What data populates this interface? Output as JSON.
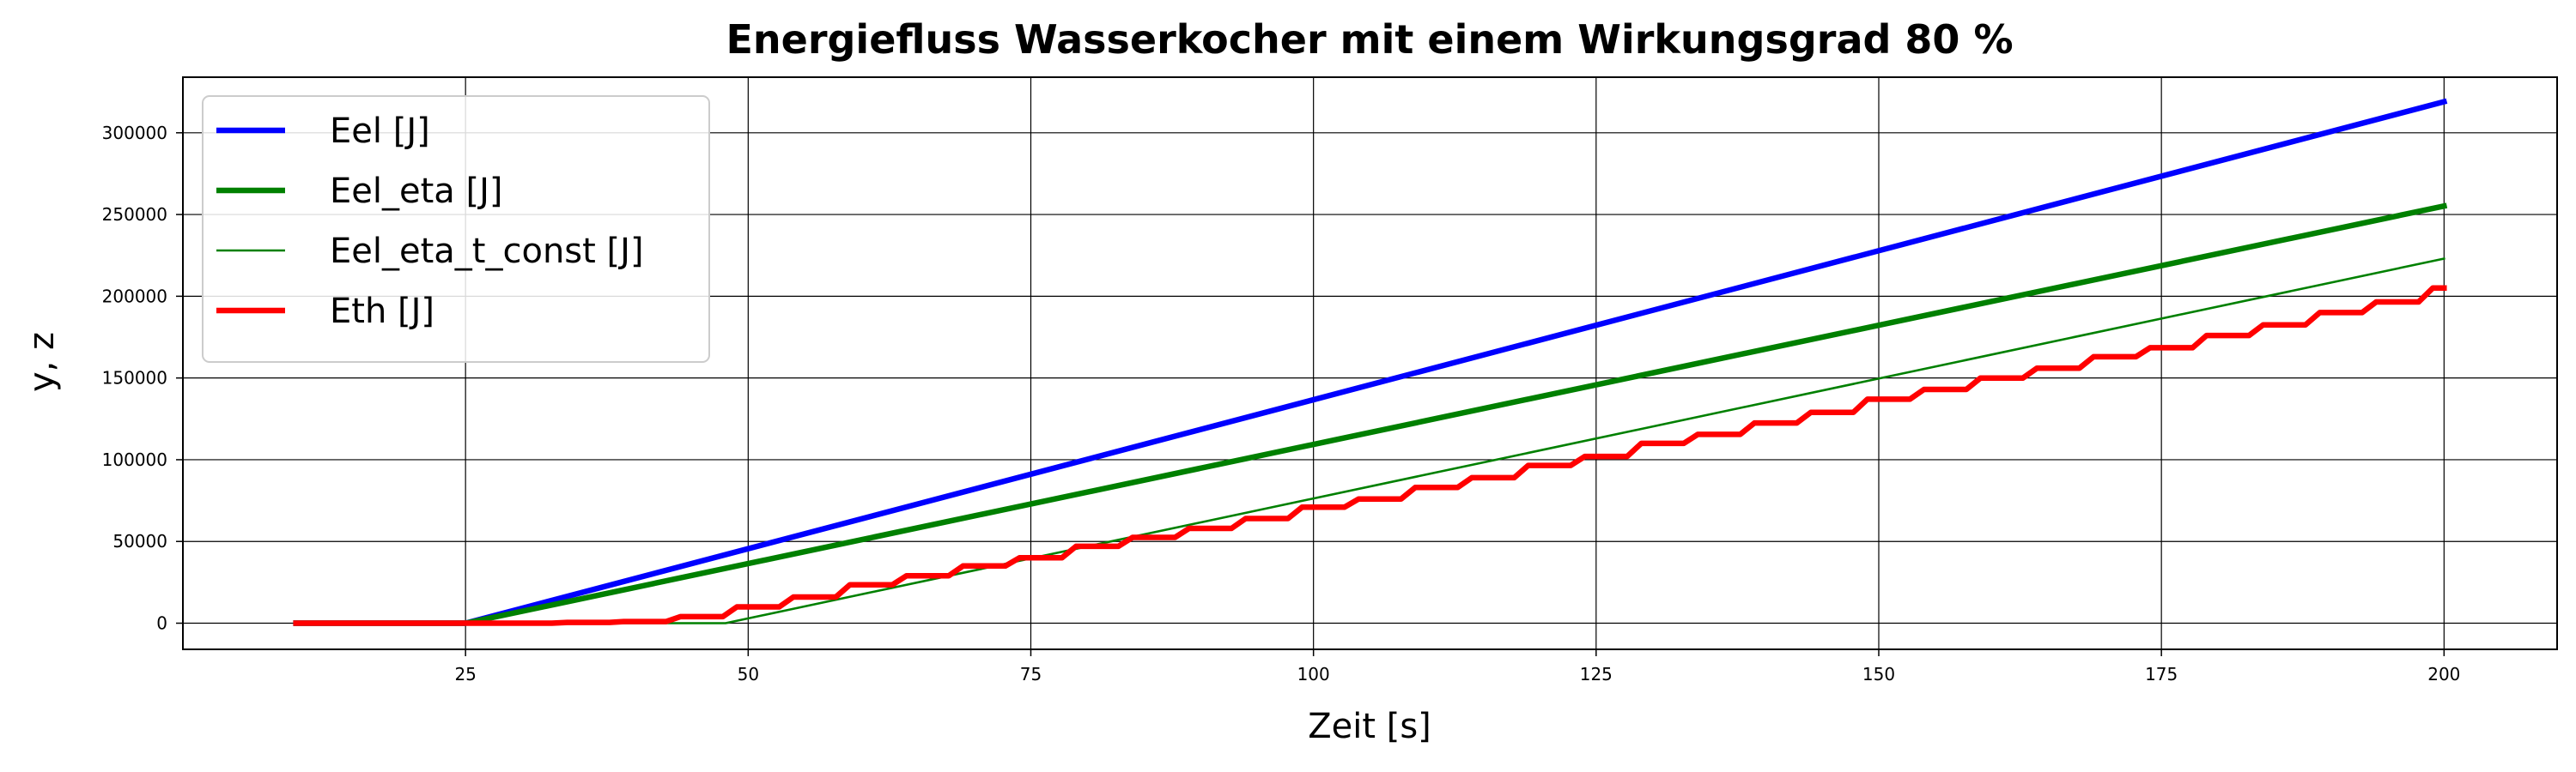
{
  "chart_data": {
    "type": "line",
    "title": "Energiefluss Wasserkocher mit einem Wirkungsgrad 80 %",
    "xlabel": "Zeit [s]",
    "ylabel": "y, z",
    "xlim": [
      0,
      210
    ],
    "ylim": [
      -16000,
      334000
    ],
    "xticks": [
      25,
      50,
      75,
      100,
      125,
      150,
      175,
      200
    ],
    "yticks": [
      0,
      50000,
      100000,
      150000,
      200000,
      250000,
      300000
    ],
    "grid": true,
    "legend_position": "top-left",
    "series": [
      {
        "name": "Eel [J]",
        "color": "#0000ff",
        "width": "thick",
        "x": [
          10,
          25,
          200
        ],
        "y": [
          0,
          0,
          319000
        ]
      },
      {
        "name": "Eel_eta [J]",
        "color": "#008000",
        "width": "thick",
        "x": [
          10,
          25,
          200
        ],
        "y": [
          0,
          0,
          255200
        ]
      },
      {
        "name": "Eel_eta_t_const [J]",
        "color": "#008000",
        "width": "thin",
        "x": [
          10,
          48,
          200
        ],
        "y": [
          0,
          0,
          223000
        ]
      },
      {
        "name": "Eth [J]",
        "color": "#ff0000",
        "width": "thick",
        "step": true,
        "x": [
          10,
          28,
          34,
          39,
          44,
          49,
          54,
          59,
          64,
          69,
          74,
          79,
          84,
          89,
          94,
          99,
          104,
          109,
          114,
          119,
          124,
          129,
          134,
          139,
          144,
          149,
          154,
          159,
          164,
          169,
          174,
          179,
          184,
          189,
          194,
          199,
          200
        ],
        "y": [
          0,
          0,
          500,
          1000,
          4000,
          10000,
          16000,
          23500,
          29000,
          35000,
          40000,
          47000,
          52500,
          58000,
          64000,
          71000,
          76000,
          83000,
          89000,
          96500,
          102000,
          110000,
          115500,
          122500,
          129000,
          137000,
          143000,
          150000,
          156000,
          163000,
          168500,
          176000,
          182500,
          190000,
          196500,
          205000,
          205000
        ]
      }
    ]
  }
}
